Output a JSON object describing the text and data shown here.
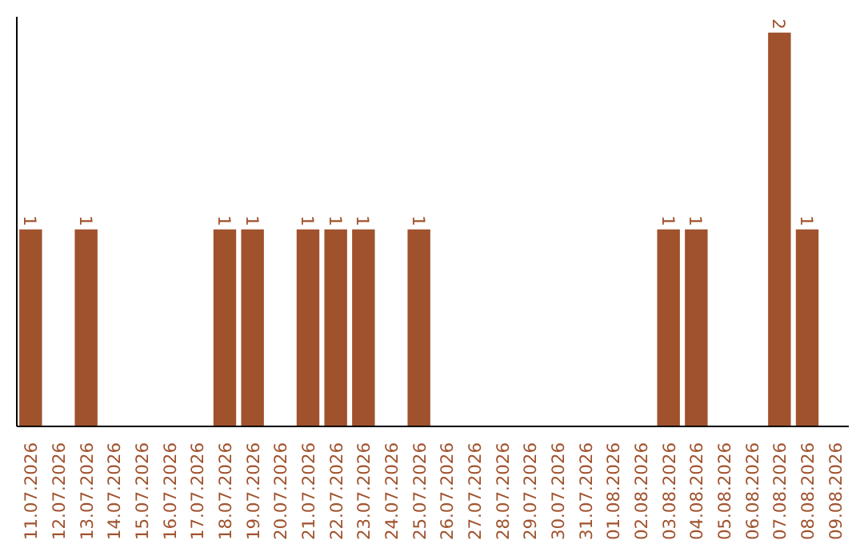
{
  "chart_data": {
    "type": "bar",
    "categories": [
      "11.07.2026",
      "12.07.2026",
      "13.07.2026",
      "14.07.2026",
      "15.07.2026",
      "16.07.2026",
      "17.07.2026",
      "18.07.2026",
      "19.07.2026",
      "20.07.2026",
      "21.07.2026",
      "22.07.2026",
      "23.07.2026",
      "24.07.2026",
      "25.07.2026",
      "26.07.2026",
      "27.07.2026",
      "28.07.2026",
      "29.07.2026",
      "30.07.2026",
      "31.07.2026",
      "01.08.2026",
      "02.08.2026",
      "03.08.2026",
      "04.08.2026",
      "05.08.2026",
      "06.08.2026",
      "07.08.2026",
      "08.08.2026",
      "09.08.2026"
    ],
    "values": [
      1,
      0,
      1,
      0,
      0,
      0,
      0,
      1,
      1,
      0,
      1,
      1,
      1,
      0,
      1,
      0,
      0,
      0,
      0,
      0,
      0,
      0,
      0,
      1,
      1,
      0,
      0,
      2,
      1,
      0
    ],
    "value_labels": [
      "1",
      null,
      "1",
      null,
      null,
      null,
      null,
      "1",
      "1",
      null,
      "1",
      "1",
      "1",
      null,
      "1",
      null,
      null,
      null,
      null,
      null,
      null,
      null,
      null,
      "1",
      "1",
      null,
      null,
      "2",
      "1",
      null
    ],
    "color": "#a0522d",
    "ylim": [
      0,
      2.08
    ],
    "grid": false,
    "tick_labels": "x"
  }
}
